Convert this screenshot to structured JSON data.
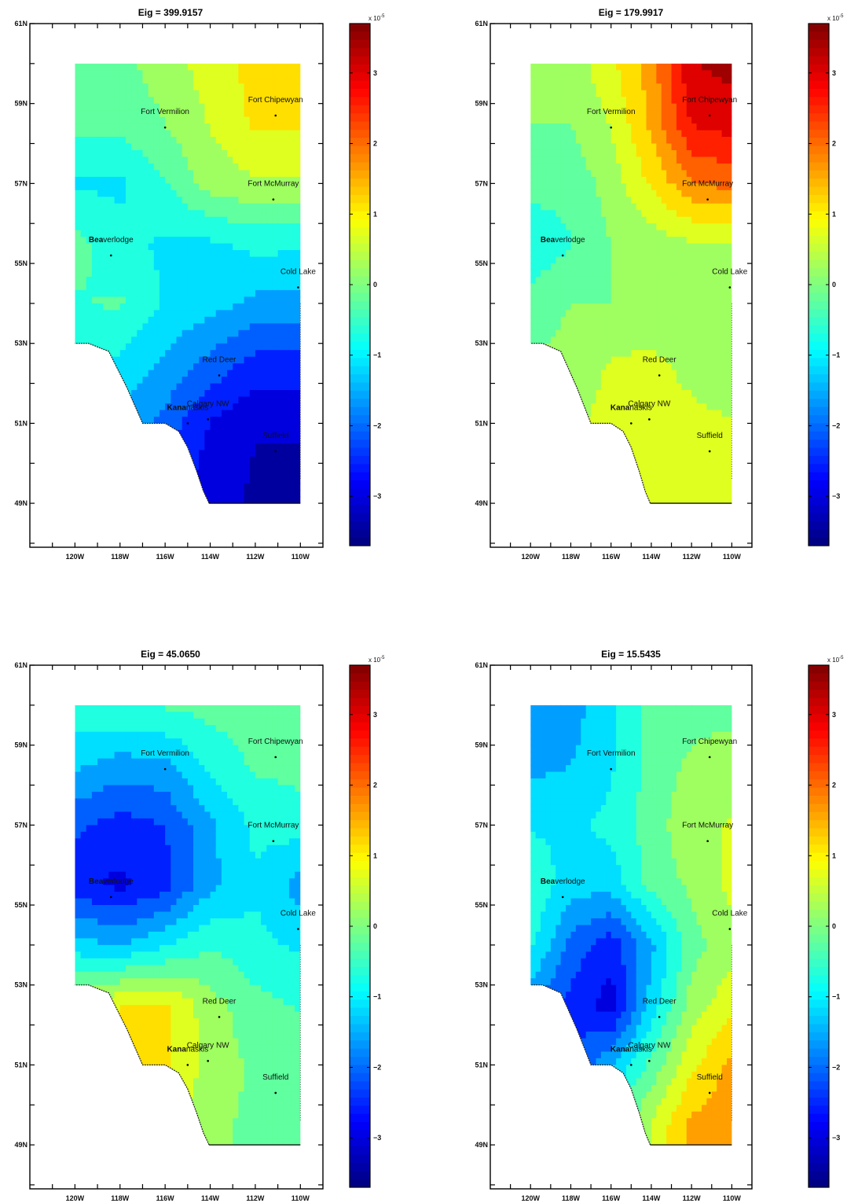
{
  "chart_data": [
    {
      "type": "heatmap",
      "title": "Eig = 399.9157",
      "colorbar": {
        "min": -3.7,
        "max": 3.7,
        "ticks": [
          -3,
          -2,
          -1,
          0,
          1,
          2,
          3
        ],
        "multiplier": "x 10^-5",
        "colormap": "jet"
      },
      "field": {
        "lat_rows": [
          60,
          58.5,
          57,
          55.5,
          54,
          52.5,
          51,
          49.5
        ],
        "lon_cols": [
          -120,
          -118,
          -116,
          -114,
          -112,
          -110
        ],
        "values": [
          [
            -0.2,
            -0.1,
            0.2,
            0.7,
            1.1,
            1.3
          ],
          [
            -0.3,
            -0.3,
            0.0,
            0.5,
            1.0,
            1.0
          ],
          [
            -1.0,
            -1.0,
            -0.5,
            0.2,
            0.4,
            0.4
          ],
          [
            -0.3,
            -0.8,
            -1.0,
            -1.0,
            -0.8,
            -0.8
          ],
          [
            -0.5,
            -0.4,
            -1.0,
            -1.2,
            -1.5,
            -1.6
          ],
          [
            -0.8,
            -1.0,
            -1.5,
            -2.0,
            -2.5,
            -2.5
          ],
          [
            -1.2,
            -1.5,
            -2.0,
            -2.8,
            -3.2,
            -3.2
          ],
          [
            -1.5,
            -2.0,
            -2.5,
            -3.0,
            -3.3,
            -3.3
          ]
        ]
      }
    },
    {
      "type": "heatmap",
      "title": "Eig = 179.9917",
      "colorbar": {
        "min": -3.7,
        "max": 3.7,
        "ticks": [
          -3,
          -2,
          -1,
          0,
          1,
          2,
          3
        ],
        "multiplier": "x 10^-5",
        "colormap": "jet"
      },
      "field": {
        "lat_rows": [
          60,
          58.5,
          57,
          55.5,
          54,
          52.5,
          51,
          49.5
        ],
        "lon_cols": [
          -120,
          -118,
          -116,
          -114,
          -112,
          -110
        ],
        "values": [
          [
            0.0,
            0.2,
            0.8,
            1.6,
            3.2,
            3.4
          ],
          [
            0.0,
            0.0,
            0.5,
            1.5,
            2.8,
            3.0
          ],
          [
            -0.3,
            -0.3,
            0.2,
            1.0,
            1.8,
            2.0
          ],
          [
            -0.8,
            -0.5,
            0.0,
            0.2,
            0.4,
            0.4
          ],
          [
            -0.3,
            0.0,
            0.0,
            0.0,
            0.0,
            0.0
          ],
          [
            0.0,
            0.2,
            0.5,
            0.6,
            0.3,
            0.1
          ],
          [
            0.2,
            0.4,
            0.6,
            0.7,
            0.6,
            0.5
          ],
          [
            0.3,
            0.5,
            0.6,
            0.7,
            0.6,
            0.6
          ]
        ]
      }
    },
    {
      "type": "heatmap",
      "title": "Eig = 45.0650",
      "colorbar": {
        "min": -3.7,
        "max": 3.7,
        "ticks": [
          -3,
          -2,
          -1,
          0,
          1,
          2,
          3
        ],
        "multiplier": "x 10^-5",
        "colormap": "jet"
      },
      "field": {
        "lat_rows": [
          60,
          58.5,
          57,
          55.5,
          54,
          52.5,
          51,
          49.5
        ],
        "lon_cols": [
          -120,
          -118,
          -116,
          -114,
          -112,
          -110
        ],
        "values": [
          [
            -0.6,
            -0.5,
            -0.4,
            -0.3,
            -0.2,
            -0.2
          ],
          [
            -1.3,
            -1.6,
            -1.5,
            -0.8,
            -0.4,
            -0.3
          ],
          [
            -2.2,
            -2.5,
            -2.3,
            -1.5,
            -0.8,
            -0.7
          ],
          [
            -2.6,
            -2.9,
            -2.5,
            -1.5,
            -1.0,
            -1.6
          ],
          [
            -1.2,
            -1.4,
            -1.0,
            -0.5,
            -0.8,
            -1.0
          ],
          [
            0.5,
            0.9,
            1.0,
            0.2,
            -0.3,
            -0.5
          ],
          [
            1.0,
            1.4,
            1.0,
            0.3,
            -0.1,
            -0.2
          ],
          [
            0.6,
            1.0,
            0.6,
            0.1,
            -0.1,
            -0.1
          ]
        ]
      }
    },
    {
      "type": "heatmap",
      "title": "Eig = 15.5435",
      "colorbar": {
        "min": -3.7,
        "max": 3.7,
        "ticks": [
          -3,
          -2,
          -1,
          0,
          1,
          2,
          3
        ],
        "multiplier": "x 10^-5",
        "colormap": "jet"
      },
      "field": {
        "lat_rows": [
          60,
          58.5,
          57,
          55.5,
          54,
          52.5,
          51,
          49.5
        ],
        "lon_cols": [
          -120,
          -118,
          -116,
          -114,
          -112,
          -110
        ],
        "values": [
          [
            -1.6,
            -1.6,
            -1.0,
            -0.3,
            -0.2,
            -0.2
          ],
          [
            -1.5,
            -1.4,
            -1.0,
            -0.3,
            0.1,
            0.3
          ],
          [
            -1.0,
            -1.0,
            -0.8,
            -0.2,
            0.3,
            0.5
          ],
          [
            -0.5,
            -1.2,
            -1.2,
            -0.3,
            0.1,
            0.6
          ],
          [
            -0.8,
            -2.0,
            -2.6,
            -1.5,
            -0.2,
            0.3
          ],
          [
            -1.8,
            -2.5,
            -3.0,
            -1.2,
            0.2,
            0.8
          ],
          [
            -2.6,
            -2.2,
            -1.5,
            -0.3,
            0.8,
            1.5
          ],
          [
            -1.0,
            -0.8,
            -0.3,
            0.5,
            1.5,
            1.8
          ]
        ]
      }
    }
  ],
  "axes": {
    "lat_labels": [
      {
        "lat": 61,
        "label": "61N"
      },
      {
        "lat": 59,
        "label": "59N"
      },
      {
        "lat": 57,
        "label": "57N"
      },
      {
        "lat": 55,
        "label": "55N"
      },
      {
        "lat": 53,
        "label": "53N"
      },
      {
        "lat": 51,
        "label": "51N"
      },
      {
        "lat": 49,
        "label": "49N"
      }
    ],
    "lon_labels": [
      {
        "lon": -120,
        "label": "120W"
      },
      {
        "lon": -118,
        "label": "118W"
      },
      {
        "lon": -116,
        "label": "116W"
      },
      {
        "lon": -114,
        "label": "114W"
      },
      {
        "lon": -112,
        "label": "112W"
      },
      {
        "lon": -110,
        "label": "110W"
      }
    ],
    "lat_range": [
      47.9,
      61
    ],
    "lon_range": [
      -122,
      -109
    ]
  },
  "stations": [
    {
      "name": "Fort Chipewyan",
      "lon": -111.1,
      "lat": 58.7
    },
    {
      "name": "Fort Vermilion",
      "lon": -116.0,
      "lat": 58.4
    },
    {
      "name": "Fort McMurray",
      "lon": -111.2,
      "lat": 56.6
    },
    {
      "name": "Beaverlodge",
      "lon": -118.4,
      "lat": 55.2
    },
    {
      "name": "Cold Lake",
      "lon": -110.1,
      "lat": 54.4
    },
    {
      "name": "Red Deer",
      "lon": -113.6,
      "lat": 52.2
    },
    {
      "name": "Calgary NW",
      "lon": -114.1,
      "lat": 51.1
    },
    {
      "name": "Kananaskis",
      "lon": -115.0,
      "lat": 51.0
    },
    {
      "name": "Suffield",
      "lon": -111.1,
      "lat": 50.3
    }
  ],
  "region_outline": [
    [
      -120,
      60
    ],
    [
      -110,
      60
    ],
    [
      -110,
      49
    ],
    [
      -114.05,
      49
    ],
    [
      -114.3,
      49.3
    ],
    [
      -114.6,
      49.8
    ],
    [
      -115.0,
      50.4
    ],
    [
      -115.4,
      50.8
    ],
    [
      -116.0,
      51.0
    ],
    [
      -117.0,
      51.0
    ],
    [
      -117.7,
      51.9
    ],
    [
      -118.5,
      52.8
    ],
    [
      -119.4,
      53.0
    ],
    [
      -120,
      53.0
    ]
  ],
  "colors": {
    "frame": "#000000",
    "background": "#ffffff"
  }
}
